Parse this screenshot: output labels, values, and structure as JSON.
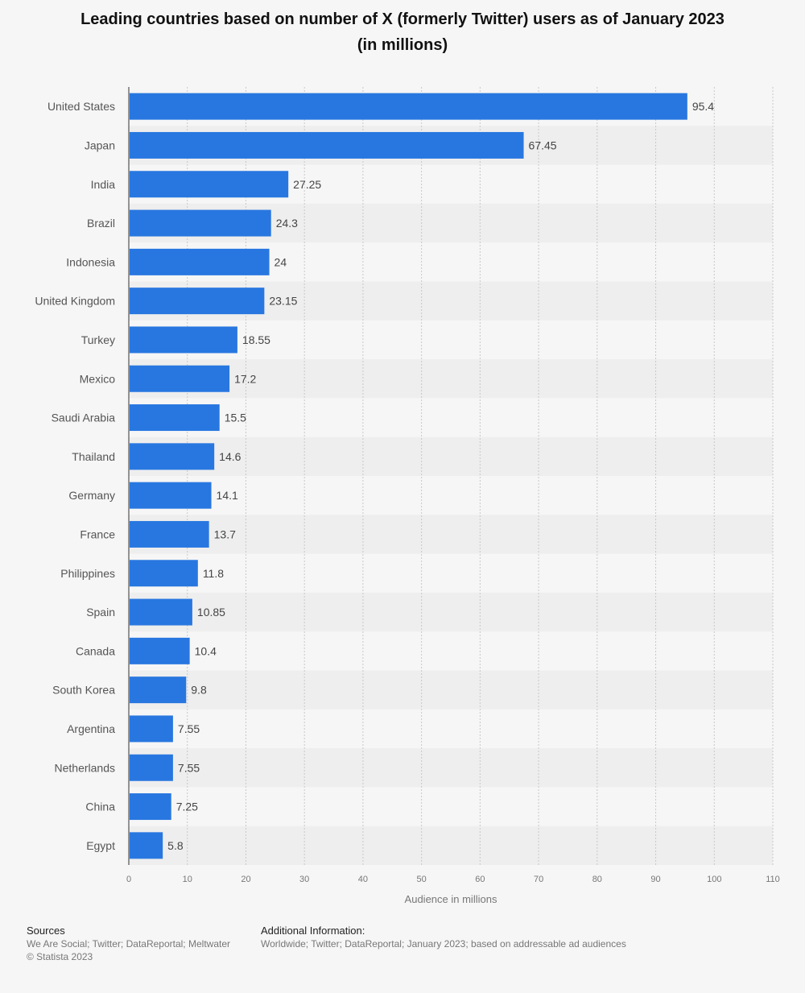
{
  "title_line1": "Leading countries based on number of X (formerly Twitter) users as of January 2023",
  "title_line2": "(in millions)",
  "footer": {
    "sources_heading": "Sources",
    "sources_text": "We Are Social; Twitter; DataReportal; Meltwater",
    "copyright": "© Statista 2023",
    "additional_heading": "Additional Information:",
    "additional_text": "Worldwide; Twitter; DataReportal; January 2023; based on addressable ad audiences"
  },
  "colors": {
    "bar": "#2877e0",
    "grid": "#c8c8c8",
    "band": "#eeeeee",
    "axis_text": "#777777",
    "category_text": "#555555",
    "value_text": "#444444"
  },
  "chart_data": {
    "type": "bar",
    "orientation": "horizontal",
    "title": "Leading countries based on number of X (formerly Twitter) users as of January 2023 (in millions)",
    "xlabel": "Audience in millions",
    "ylabel": "",
    "xlim": [
      0,
      110
    ],
    "xticks": [
      0,
      10,
      20,
      30,
      40,
      50,
      60,
      70,
      80,
      90,
      100,
      110
    ],
    "grid": true,
    "categories": [
      "United States",
      "Japan",
      "India",
      "Brazil",
      "Indonesia",
      "United Kingdom",
      "Turkey",
      "Mexico",
      "Saudi Arabia",
      "Thailand",
      "Germany",
      "France",
      "Philippines",
      "Spain",
      "Canada",
      "South Korea",
      "Argentina",
      "Netherlands",
      "China",
      "Egypt"
    ],
    "values": [
      95.4,
      67.45,
      27.25,
      24.3,
      24,
      23.15,
      18.55,
      17.2,
      15.5,
      14.6,
      14.1,
      13.7,
      11.8,
      10.85,
      10.4,
      9.8,
      7.55,
      7.55,
      7.25,
      5.8
    ],
    "value_labels": [
      "95.4",
      "67.45",
      "27.25",
      "24.3",
      "24",
      "23.15",
      "18.55",
      "17.2",
      "15.5",
      "14.6",
      "14.1",
      "13.7",
      "11.8",
      "10.85",
      "10.4",
      "9.8",
      "7.55",
      "7.55",
      "7.25",
      "5.8"
    ]
  }
}
